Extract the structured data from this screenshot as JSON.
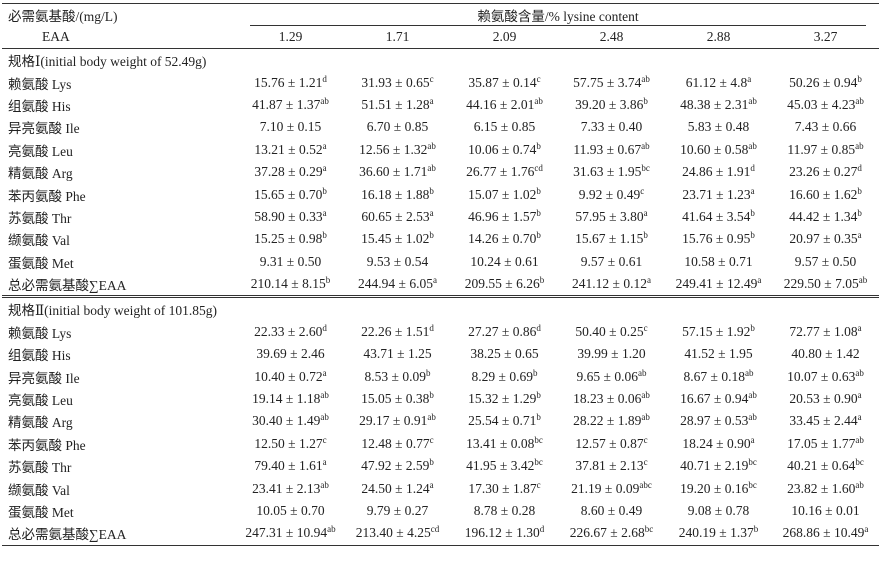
{
  "table": {
    "header": {
      "first_col": "必需氨基酸/(mg/L)",
      "first_col_en": "EAA",
      "span": "赖氨酸含量/% lysine content",
      "levels": [
        "1.29",
        "1.71",
        "2.09",
        "2.48",
        "2.88",
        "3.27"
      ]
    },
    "groups": [
      {
        "label": "规格Ⅰ(initial body weight of 52.49g)",
        "rows": [
          {
            "name": "赖氨酸 Lys",
            "cells": [
              {
                "text": "15.76 ± 1.21",
                "sup": "d"
              },
              {
                "text": "31.93 ± 0.65",
                "sup": "c"
              },
              {
                "text": "35.87 ± 0.14",
                "sup": "c"
              },
              {
                "text": "57.75 ± 3.74",
                "sup": "ab"
              },
              {
                "text": "61.12 ± 4.8",
                "sup": "a"
              },
              {
                "text": "50.26 ± 0.94",
                "sup": "b"
              }
            ]
          },
          {
            "name": "组氨酸 His",
            "cells": [
              {
                "text": "41.87 ± 1.37",
                "sup": "ab"
              },
              {
                "text": "51.51 ± 1.28",
                "sup": "a"
              },
              {
                "text": "44.16 ± 2.01",
                "sup": "ab"
              },
              {
                "text": "39.20 ± 3.86",
                "sup": "b"
              },
              {
                "text": "48.38 ± 2.31",
                "sup": "ab"
              },
              {
                "text": "45.03 ± 4.23",
                "sup": "ab"
              }
            ]
          },
          {
            "name": "异亮氨酸 Ile",
            "cells": [
              {
                "text": "7.10 ± 0.15"
              },
              {
                "text": "6.70 ± 0.85"
              },
              {
                "text": "6.15 ± 0.85"
              },
              {
                "text": "7.33 ± 0.40"
              },
              {
                "text": "5.83 ± 0.48"
              },
              {
                "text": "7.43 ± 0.66"
              }
            ]
          },
          {
            "name": "亮氨酸 Leu",
            "cells": [
              {
                "text": "13.21 ± 0.52",
                "sup": "a"
              },
              {
                "text": "12.56 ± 1.32",
                "sup": "ab"
              },
              {
                "text": "10.06 ± 0.74",
                "sup": "b"
              },
              {
                "text": "11.93 ± 0.67",
                "sup": "ab"
              },
              {
                "text": "10.60 ± 0.58",
                "sup": "ab"
              },
              {
                "text": "11.97 ± 0.85",
                "sup": "ab"
              }
            ]
          },
          {
            "name": "精氨酸 Arg",
            "cells": [
              {
                "text": "37.28 ± 0.29",
                "sup": "a"
              },
              {
                "text": "36.60 ± 1.71",
                "sup": "ab"
              },
              {
                "text": "26.77 ± 1.76",
                "sup": "cd"
              },
              {
                "text": "31.63 ± 1.95",
                "sup": "bc"
              },
              {
                "text": "24.86 ± 1.91",
                "sup": "d"
              },
              {
                "text": "23.26 ± 0.27",
                "sup": "d"
              }
            ]
          },
          {
            "name": "苯丙氨酸 Phe",
            "cells": [
              {
                "text": "15.65 ± 0.70",
                "sup": "b"
              },
              {
                "text": "16.18 ± 1.88",
                "sup": "b"
              },
              {
                "text": "15.07 ± 1.02",
                "sup": "b"
              },
              {
                "text": "9.92 ± 0.49",
                "sup": "c"
              },
              {
                "text": "23.71 ± 1.23",
                "sup": "a"
              },
              {
                "text": "16.60 ± 1.62",
                "sup": "b"
              }
            ]
          },
          {
            "name": "苏氨酸 Thr",
            "cells": [
              {
                "text": "58.90 ± 0.33",
                "sup": "a"
              },
              {
                "text": "60.65 ± 2.53",
                "sup": "a"
              },
              {
                "text": "46.96 ± 1.57",
                "sup": "b"
              },
              {
                "text": "57.95 ± 3.80",
                "sup": "a"
              },
              {
                "text": "41.64 ± 3.54",
                "sup": "b"
              },
              {
                "text": "44.42 ± 1.34",
                "sup": "b"
              }
            ]
          },
          {
            "name": "缬氨酸 Val",
            "cells": [
              {
                "text": "15.25 ± 0.98",
                "sup": "b"
              },
              {
                "text": "15.45 ± 1.02",
                "sup": "b"
              },
              {
                "text": "14.26 ± 0.70",
                "sup": "b"
              },
              {
                "text": "15.67 ± 1.15",
                "sup": "b"
              },
              {
                "text": "15.76 ± 0.95",
                "sup": "b"
              },
              {
                "text": "20.97 ± 0.35",
                "sup": "a"
              }
            ]
          },
          {
            "name": "蛋氨酸 Met",
            "cells": [
              {
                "text": "9.31 ± 0.50"
              },
              {
                "text": "9.53 ± 0.54"
              },
              {
                "text": "10.24 ± 0.61"
              },
              {
                "text": "9.57 ± 0.61"
              },
              {
                "text": "10.58 ± 0.71"
              },
              {
                "text": "9.57 ± 0.50"
              }
            ]
          },
          {
            "name": "总必需氨基酸∑EAA",
            "cells": [
              {
                "text": "210.14 ± 8.15",
                "sup": "b"
              },
              {
                "text": "244.94 ± 6.05",
                "sup": "a"
              },
              {
                "text": "209.55 ± 6.26",
                "sup": "b"
              },
              {
                "text": "241.12 ± 0.12",
                "sup": "a"
              },
              {
                "text": "249.41 ± 12.49",
                "sup": "a"
              },
              {
                "text": "229.50 ± 7.05",
                "sup": "ab"
              }
            ]
          }
        ]
      },
      {
        "label": "规格Ⅱ(initial body weight of 101.85g)",
        "rows": [
          {
            "name": "赖氨酸 Lys",
            "cells": [
              {
                "text": "22.33 ± 2.60",
                "sup": "d"
              },
              {
                "text": "22.26 ± 1.51",
                "sup": "d"
              },
              {
                "text": "27.27 ± 0.86",
                "sup": "d"
              },
              {
                "text": "50.40 ± 0.25",
                "sup": "c"
              },
              {
                "text": "57.15 ± 1.92",
                "sup": "b"
              },
              {
                "text": "72.77 ± 1.08",
                "sup": "a"
              }
            ]
          },
          {
            "name": "组氨酸 His",
            "cells": [
              {
                "text": "39.69 ± 2.46"
              },
              {
                "text": "43.71 ± 1.25"
              },
              {
                "text": "38.25 ± 0.65"
              },
              {
                "text": "39.99 ± 1.20"
              },
              {
                "text": "41.52 ± 1.95"
              },
              {
                "text": "40.80 ± 1.42"
              }
            ]
          },
          {
            "name": "异亮氨酸 Ile",
            "cells": [
              {
                "text": "10.40 ± 0.72",
                "sup": "a"
              },
              {
                "text": "8.53 ± 0.09",
                "sup": "b"
              },
              {
                "text": "8.29 ± 0.69",
                "sup": "b"
              },
              {
                "text": "9.65 ± 0.06",
                "sup": "ab"
              },
              {
                "text": "8.67 ± 0.18",
                "sup": "ab"
              },
              {
                "text": "10.07 ± 0.63",
                "sup": "ab"
              }
            ]
          },
          {
            "name": "亮氨酸 Leu",
            "cells": [
              {
                "text": "19.14 ± 1.18",
                "sup": "ab"
              },
              {
                "text": "15.05 ± 0.38",
                "sup": "b"
              },
              {
                "text": "15.32 ± 1.29",
                "sup": "b"
              },
              {
                "text": "18.23 ± 0.06",
                "sup": "ab"
              },
              {
                "text": "16.67 ± 0.94",
                "sup": "ab"
              },
              {
                "text": "20.53 ± 0.90",
                "sup": "a"
              }
            ]
          },
          {
            "name": "精氨酸 Arg",
            "cells": [
              {
                "text": "30.40 ± 1.49",
                "sup": "ab"
              },
              {
                "text": "29.17 ± 0.91",
                "sup": "ab"
              },
              {
                "text": "25.54 ± 0.71",
                "sup": "b"
              },
              {
                "text": "28.22 ± 1.89",
                "sup": "ab"
              },
              {
                "text": "28.97 ± 0.53",
                "sup": "ab"
              },
              {
                "text": "33.45 ± 2.44",
                "sup": "a"
              }
            ]
          },
          {
            "name": "苯丙氨酸 Phe",
            "cells": [
              {
                "text": "12.50 ± 1.27",
                "sup": "c"
              },
              {
                "text": "12.48 ± 0.77",
                "sup": "c"
              },
              {
                "text": "13.41 ± 0.08",
                "sup": "bc"
              },
              {
                "text": "12.57 ± 0.87",
                "sup": "c"
              },
              {
                "text": "18.24 ± 0.90",
                "sup": "a"
              },
              {
                "text": "17.05 ± 1.77",
                "sup": "ab"
              }
            ]
          },
          {
            "name": "苏氨酸 Thr",
            "cells": [
              {
                "text": "79.40 ± 1.61",
                "sup": "a"
              },
              {
                "text": "47.92 ± 2.59",
                "sup": "b"
              },
              {
                "text": "41.95 ± 3.42",
                "sup": "bc"
              },
              {
                "text": "37.81 ± 2.13",
                "sup": "c"
              },
              {
                "text": "40.71 ± 2.19",
                "sup": "bc"
              },
              {
                "text": "40.21 ± 0.64",
                "sup": "bc"
              }
            ]
          },
          {
            "name": "缬氨酸 Val",
            "cells": [
              {
                "text": "23.41 ± 2.13",
                "sup": "ab"
              },
              {
                "text": "24.50 ± 1.24",
                "sup": "a"
              },
              {
                "text": "17.30 ± 1.87",
                "sup": "c"
              },
              {
                "text": "21.19 ± 0.09",
                "sup": "abc"
              },
              {
                "text": "19.20 ± 0.16",
                "sup": "bc"
              },
              {
                "text": "23.82 ± 1.60",
                "sup": "ab"
              }
            ]
          },
          {
            "name": "蛋氨酸 Met",
            "cells": [
              {
                "text": "10.05 ± 0.70"
              },
              {
                "text": "9.79 ± 0.27"
              },
              {
                "text": "8.78 ± 0.28"
              },
              {
                "text": "8.60 ± 0.49"
              },
              {
                "text": "9.08 ± 0.78"
              },
              {
                "text": "10.16 ± 0.01"
              }
            ]
          },
          {
            "name": "总必需氨基酸∑EAA",
            "cells": [
              {
                "text": "247.31 ± 10.94",
                "sup": "ab"
              },
              {
                "text": "213.40 ± 4.25",
                "sup": "cd"
              },
              {
                "text": "196.12 ± 1.30",
                "sup": "d"
              },
              {
                "text": "226.67 ± 2.68",
                "sup": "bc"
              },
              {
                "text": "240.19 ± 1.37",
                "sup": "b"
              },
              {
                "text": "268.86 ± 10.49",
                "sup": "a"
              }
            ]
          }
        ]
      }
    ]
  }
}
